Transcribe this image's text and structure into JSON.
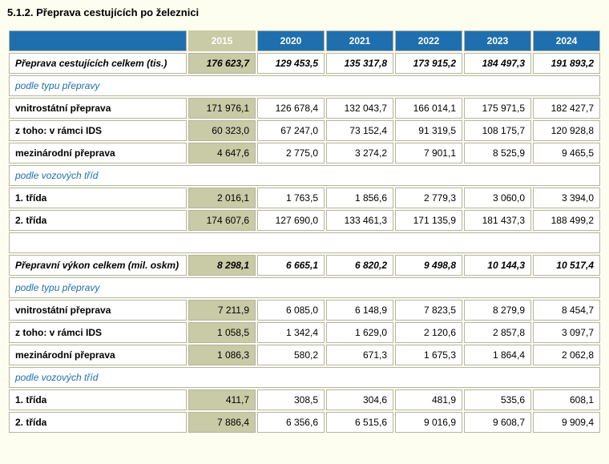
{
  "title": "5.1.2. Přeprava cestujících po železnici",
  "columns": [
    "2015",
    "2020",
    "2021",
    "2022",
    "2023",
    "2024"
  ],
  "rows": [
    {
      "type": "total",
      "label": "Přeprava cestujících celkem (tis.)",
      "values": [
        "176 623,7",
        "129 453,5",
        "135 317,8",
        "173 915,2",
        "184 497,3",
        "191 893,2"
      ]
    },
    {
      "type": "section",
      "label": "podle typu přepravy"
    },
    {
      "type": "data",
      "label": "vnitrostátní přeprava",
      "values": [
        "171 976,1",
        "126 678,4",
        "132 043,7",
        "166 014,1",
        "175 971,5",
        "182 427,7"
      ]
    },
    {
      "type": "data",
      "label": "z toho: v rámci IDS",
      "values": [
        "60 323,0",
        "67 247,0",
        "73 152,4",
        "91 319,5",
        "108 175,7",
        "120 928,8"
      ]
    },
    {
      "type": "data",
      "label": "mezinárodní přeprava",
      "values": [
        "4 647,6",
        "2 775,0",
        "3 274,2",
        "7 901,1",
        "8 525,9",
        "9 465,5"
      ]
    },
    {
      "type": "section",
      "label": "podle vozových tříd"
    },
    {
      "type": "data",
      "label": "1. třída",
      "values": [
        "2 016,1",
        "1 763,5",
        "1 856,6",
        "2 779,3",
        "3 060,0",
        "3 394,0"
      ]
    },
    {
      "type": "data",
      "label": "2. třída",
      "values": [
        "174 607,6",
        "127 690,0",
        "133 461,3",
        "171 135,9",
        "181 437,3",
        "188 499,2"
      ]
    },
    {
      "type": "spacer"
    },
    {
      "type": "total",
      "label": "Přepravní výkon celkem (mil. oskm)",
      "values": [
        "8 298,1",
        "6 665,1",
        "6 820,2",
        "9 498,8",
        "10 144,3",
        "10 517,4"
      ]
    },
    {
      "type": "section",
      "label": "podle typu přepravy"
    },
    {
      "type": "data",
      "label": "vnitrostátní přeprava",
      "values": [
        "7 211,9",
        "6 085,0",
        "6 148,9",
        "7 823,5",
        "8 279,9",
        "8 454,7"
      ]
    },
    {
      "type": "data",
      "label": "z toho: v rámci IDS",
      "values": [
        "1 058,5",
        "1 342,4",
        "1 629,0",
        "2 120,6",
        "2 857,8",
        "3 097,7"
      ]
    },
    {
      "type": "data",
      "label": "mezinárodní přeprava",
      "values": [
        "1 086,3",
        "580,2",
        "671,3",
        "1 675,3",
        "1 864,4",
        "2 062,8"
      ]
    },
    {
      "type": "section",
      "label": "podle vozových tříd"
    },
    {
      "type": "data",
      "label": "1. třída",
      "values": [
        "411,7",
        "308,5",
        "304,6",
        "481,9",
        "535,6",
        "608,1"
      ]
    },
    {
      "type": "data",
      "label": "2. třída",
      "values": [
        "7 886,4",
        "6 356,6",
        "6 515,6",
        "9 016,9",
        "9 608,7",
        "9 909,4"
      ]
    }
  ]
}
